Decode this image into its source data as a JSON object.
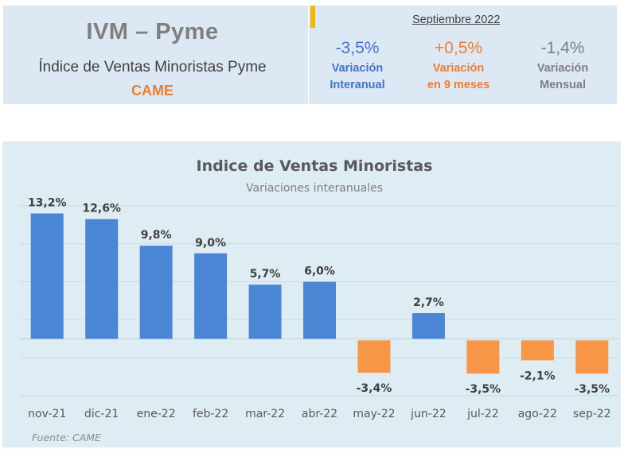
{
  "header": {
    "brand_title": "IVM  –  Pyme",
    "brand_subtitle": "Índice de Ventas Minoristas Pyme",
    "brand_org": "CAME",
    "period": "Septiembre 2022",
    "kpis": [
      {
        "value": "-3,5%",
        "label_line1": "Variación",
        "label_line2": "Interanual",
        "color": "#4472c4"
      },
      {
        "value": "+0,5%",
        "label_line1": "Variación",
        "label_line2": "en 9 meses",
        "color": "#ed7d31"
      },
      {
        "value": "-1,4%",
        "label_line1": "Variación",
        "label_line2": "Mensual",
        "color": "#7f7f7f"
      }
    ]
  },
  "chart_data": {
    "type": "bar",
    "title": "Indice de Ventas Minoristas",
    "subtitle": "Variaciones interanuales",
    "categories": [
      "nov-21",
      "dic-21",
      "ene-22",
      "feb-22",
      "mar-22",
      "abr-22",
      "may-22",
      "jun-22",
      "jul-22",
      "ago-22",
      "sep-22"
    ],
    "values": [
      13.2,
      12.6,
      9.8,
      9.0,
      5.7,
      6.0,
      -3.4,
      2.7,
      -3.5,
      -2.1,
      -3.5
    ],
    "data_labels": [
      "13,2%",
      "12,6%",
      "9,8%",
      "9,0%",
      "5,7%",
      "6,0%",
      "-3,4%",
      "2,7%",
      "-3,5%",
      "-2,1%",
      "-3,5%"
    ],
    "xlabel": "",
    "ylabel": "",
    "ylim": [
      -6,
      14
    ],
    "grid": true,
    "gridline_values": [
      -6,
      -2,
      2,
      6,
      10,
      14
    ],
    "positive_color": "#4a86d4",
    "negative_color": "#f79646",
    "source": "Fuente: CAME"
  }
}
